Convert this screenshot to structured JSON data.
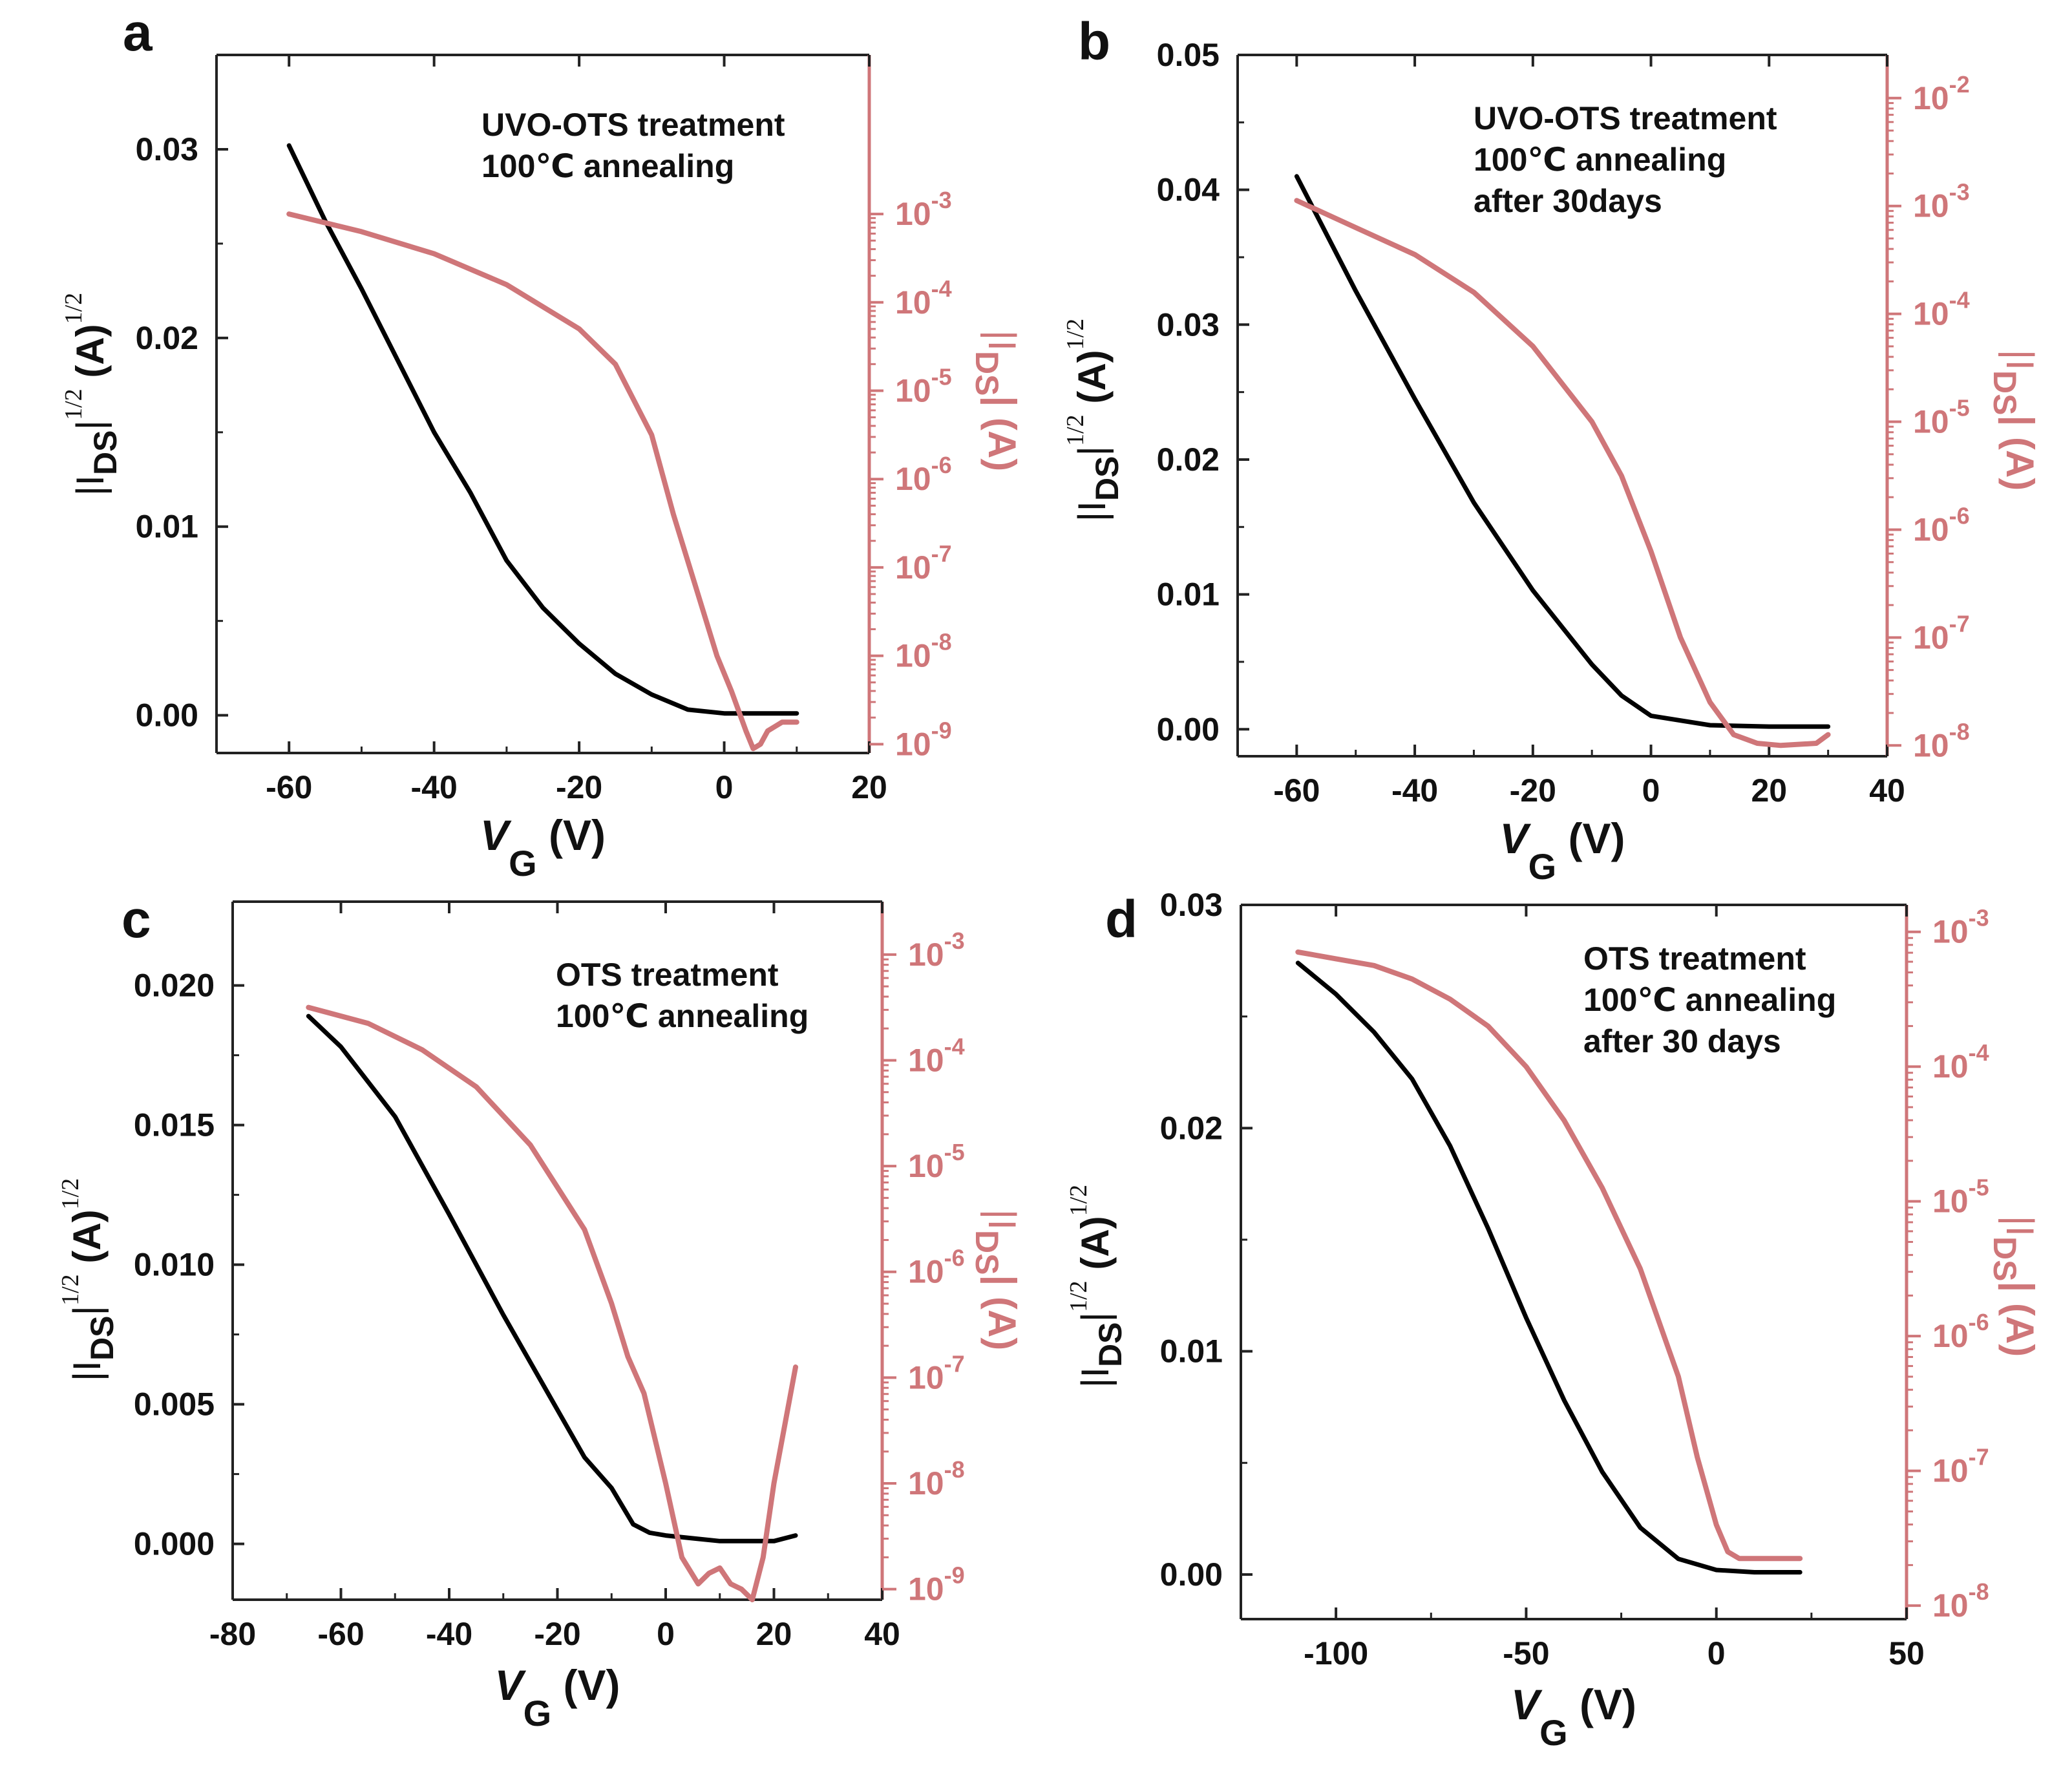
{
  "colors": {
    "black_curve": "#000000",
    "red_curve": "#cf7679",
    "axis": "#222222"
  },
  "chart_data": [
    {
      "type": "line",
      "panel": "a",
      "annotation": [
        "UVO-OTS treatment",
        "100℃ annealing"
      ],
      "xlabel": "V",
      "xlabel_sub": "G",
      "xlabel_unit": "(V)",
      "ylabel_left": "|I",
      "ylabel_left_sub": "DS",
      "ylabel_left_tail": "|",
      "ylabel_left_sup": "1/2",
      "ylabel_left_unit": "(A)",
      "ylabel_left_unit_sup": "1/2",
      "ylabel_right": "|I",
      "ylabel_right_sub": "DS",
      "ylabel_right_tail": "| (A)",
      "xlim": [
        -70,
        20
      ],
      "ylim_left": [
        -0.002,
        0.035
      ],
      "ylog_right": [
        -9.1,
        -1.2
      ],
      "xticks": [
        -60,
        -40,
        -20,
        0,
        20
      ],
      "xticklabels": [
        "-60",
        "-40",
        "-20",
        "0",
        "20"
      ],
      "yticks_left": [
        0,
        0.01,
        0.02,
        0.03
      ],
      "yticklabels_left": [
        "0.00",
        "0.01",
        "0.02",
        "0.03"
      ],
      "yticks_right_exp": [
        -9,
        -8,
        -7,
        -6,
        -5,
        -4,
        -3
      ],
      "yticklabels_right_base": [
        "10",
        "10",
        "10",
        "10",
        "10",
        "10",
        "10"
      ],
      "yticklabels_right_exp": [
        "-9",
        "-8",
        "-7",
        "-6",
        "-5",
        "-4",
        "-3"
      ],
      "series": [
        {
          "name": "|IDS|^1/2",
          "axis": "left",
          "x": [
            -60,
            -55,
            -50,
            -45,
            -40,
            -35,
            -30,
            -25,
            -20,
            -15,
            -10,
            -5,
            0,
            5,
            10
          ],
          "y": [
            0.0302,
            0.0262,
            0.0226,
            0.0188,
            0.015,
            0.0118,
            0.0082,
            0.0057,
            0.0038,
            0.0022,
            0.0011,
            0.0003,
            0.0001,
            0.0001,
            0.0001
          ]
        },
        {
          "name": "|IDS|",
          "axis": "right",
          "x": [
            -60,
            -50,
            -40,
            -30,
            -20,
            -15,
            -10,
            -7,
            -4,
            -1,
            1,
            3,
            4,
            5,
            6,
            7,
            8,
            10
          ],
          "y_exp": [
            -3.0,
            -3.2,
            -3.45,
            -3.8,
            -4.3,
            -4.7,
            -5.5,
            -6.4,
            -7.2,
            -8.0,
            -8.4,
            -8.85,
            -9.05,
            -9.0,
            -8.85,
            -8.8,
            -8.75,
            -8.75
          ]
        }
      ]
    },
    {
      "type": "line",
      "panel": "b",
      "annotation": [
        "UVO-OTS treatment",
        "100℃ annealing",
        "after 30days"
      ],
      "xlabel": "V",
      "xlabel_sub": "G",
      "xlabel_unit": "(V)",
      "ylabel_left": "|I",
      "ylabel_left_sub": "DS",
      "ylabel_left_tail": "|",
      "ylabel_left_sup": "1/2",
      "ylabel_left_unit": "(A)",
      "ylabel_left_unit_sup": "1/2",
      "ylabel_right": "|I",
      "ylabel_right_sub": "DS",
      "ylabel_right_tail": "| (A)",
      "xlim": [
        -70,
        40
      ],
      "ylim_left": [
        -0.002,
        0.05
      ],
      "ylog_right": [
        -8.1,
        -1.6
      ],
      "xticks": [
        -60,
        -40,
        -20,
        0,
        20,
        40
      ],
      "xticklabels": [
        "-60",
        "-40",
        "-20",
        "0",
        "20",
        "40"
      ],
      "yticks_left": [
        0,
        0.01,
        0.02,
        0.03,
        0.04,
        0.05
      ],
      "yticklabels_left": [
        "0.00",
        "0.01",
        "0.02",
        "0.03",
        "0.04",
        "0.05"
      ],
      "yticks_right_exp": [
        -8,
        -7,
        -6,
        -5,
        -4,
        -3,
        -2
      ],
      "yticklabels_right_base": [
        "10",
        "10",
        "10",
        "10",
        "10",
        "10",
        "10"
      ],
      "yticklabels_right_exp": [
        "-8",
        "-7",
        "-6",
        "-5",
        "-4",
        "-3",
        "-2"
      ],
      "series": [
        {
          "name": "|IDS|^1/2",
          "axis": "left",
          "x": [
            -60,
            -50,
            -40,
            -30,
            -20,
            -10,
            -5,
            0,
            10,
            20,
            30
          ],
          "y": [
            0.041,
            0.0325,
            0.0245,
            0.0168,
            0.0103,
            0.0048,
            0.0025,
            0.001,
            0.0003,
            0.0002,
            0.0002
          ]
        },
        {
          "name": "|IDS|",
          "axis": "right",
          "x": [
            -60,
            -50,
            -40,
            -30,
            -20,
            -10,
            -5,
            0,
            5,
            10,
            14,
            18,
            22,
            28,
            30
          ],
          "y_exp": [
            -2.95,
            -3.2,
            -3.45,
            -3.8,
            -4.3,
            -5.0,
            -5.5,
            -6.2,
            -7.0,
            -7.6,
            -7.9,
            -7.98,
            -8.0,
            -7.98,
            -7.9
          ]
        }
      ]
    },
    {
      "type": "line",
      "panel": "c",
      "annotation": [
        "OTS treatment",
        "100℃ annealing"
      ],
      "xlabel": "V",
      "xlabel_sub": "G",
      "xlabel_unit": "(V)",
      "ylabel_left": "|I",
      "ylabel_left_sub": "DS",
      "ylabel_left_tail": "|",
      "ylabel_left_sup": "1/2",
      "ylabel_left_unit": "(A)",
      "ylabel_left_unit_sup": "1/2",
      "ylabel_right": "|I",
      "ylabel_right_sub": "DS",
      "ylabel_right_tail": "| (A)",
      "xlim": [
        -80,
        40
      ],
      "ylim_left": [
        -0.002,
        0.023
      ],
      "ylog_right": [
        -9.1,
        -2.5
      ],
      "xticks": [
        -80,
        -60,
        -40,
        -20,
        0,
        20,
        40
      ],
      "xticklabels": [
        "-80",
        "-60",
        "-40",
        "-20",
        "0",
        "20",
        "40"
      ],
      "yticks_left": [
        0,
        0.005,
        0.01,
        0.015,
        0.02
      ],
      "yticklabels_left": [
        "0.000",
        "0.005",
        "0.010",
        "0.015",
        "0.020"
      ],
      "yticks_right_exp": [
        -9,
        -8,
        -7,
        -6,
        -5,
        -4,
        -3
      ],
      "yticklabels_right_base": [
        "10",
        "10",
        "10",
        "10",
        "10",
        "10",
        "10"
      ],
      "yticklabels_right_exp": [
        "-9",
        "-8",
        "-7",
        "-6",
        "-5",
        "-4",
        "-3"
      ],
      "series": [
        {
          "name": "|IDS|^1/2",
          "axis": "left",
          "x": [
            -66,
            -60,
            -50,
            -40,
            -30,
            -20,
            -15,
            -10,
            -6,
            -3,
            0,
            5,
            10,
            15,
            20,
            24
          ],
          "y": [
            0.0189,
            0.0178,
            0.0153,
            0.0118,
            0.0082,
            0.0048,
            0.0031,
            0.002,
            0.0007,
            0.0004,
            0.0003,
            0.0002,
            0.0001,
            0.0001,
            0.0001,
            0.0003
          ]
        },
        {
          "name": "|IDS|",
          "axis": "right",
          "x": [
            -66,
            -55,
            -45,
            -35,
            -25,
            -15,
            -10,
            -7,
            -4,
            0,
            3,
            6,
            8,
            10,
            12,
            14,
            16,
            18,
            20,
            24
          ],
          "y_exp": [
            -3.5,
            -3.65,
            -3.9,
            -4.25,
            -4.8,
            -5.6,
            -6.3,
            -6.8,
            -7.15,
            -8.0,
            -8.7,
            -8.95,
            -8.85,
            -8.8,
            -8.95,
            -9.0,
            -9.1,
            -8.7,
            -8.0,
            -6.9
          ]
        }
      ]
    },
    {
      "type": "line",
      "panel": "d",
      "annotation": [
        "OTS treatment",
        "100℃ annealing",
        "after 30 days"
      ],
      "xlabel": "V",
      "xlabel_sub": "G",
      "xlabel_unit": "(V)",
      "ylabel_left": "|I",
      "ylabel_left_sub": "DS",
      "ylabel_left_tail": "|",
      "ylabel_left_sup": "1/2",
      "ylabel_left_unit": "(A)",
      "ylabel_left_unit_sup": "1/2",
      "ylabel_right": "|I",
      "ylabel_right_sub": "DS",
      "ylabel_right_tail": "| (A)",
      "xlim": [
        -125,
        50
      ],
      "ylim_left": [
        -0.002,
        0.03
      ],
      "ylog_right": [
        -8.1,
        -2.8
      ],
      "xticks": [
        -100,
        -50,
        0,
        50
      ],
      "xticklabels": [
        "-100",
        "-50",
        "0",
        "50"
      ],
      "yticks_left": [
        0,
        0.01,
        0.02,
        0.03
      ],
      "yticklabels_left": [
        "0.00",
        "0.01",
        "0.02",
        "0.03"
      ],
      "yticks_right_exp": [
        -8,
        -7,
        -6,
        -5,
        -4,
        -3
      ],
      "yticklabels_right_base": [
        "10",
        "10",
        "10",
        "10",
        "10",
        "10"
      ],
      "yticklabels_right_exp": [
        "-8",
        "-7",
        "-6",
        "-5",
        "-4",
        "-3"
      ],
      "series": [
        {
          "name": "|IDS|^1/2",
          "axis": "left",
          "x": [
            -110,
            -100,
            -90,
            -80,
            -70,
            -60,
            -50,
            -40,
            -30,
            -20,
            -10,
            0,
            10,
            22
          ],
          "y": [
            0.0274,
            0.026,
            0.0243,
            0.0222,
            0.0192,
            0.0155,
            0.0115,
            0.0078,
            0.0046,
            0.0021,
            0.0007,
            0.0002,
            0.0001,
            0.0001
          ]
        },
        {
          "name": "|IDS|",
          "axis": "right",
          "x": [
            -110,
            -100,
            -90,
            -80,
            -70,
            -60,
            -50,
            -40,
            -30,
            -20,
            -10,
            -5,
            0,
            3,
            6,
            10,
            22
          ],
          "y_exp": [
            -3.15,
            -3.2,
            -3.25,
            -3.35,
            -3.5,
            -3.7,
            -4.0,
            -4.4,
            -4.9,
            -5.5,
            -6.3,
            -6.9,
            -7.4,
            -7.6,
            -7.65,
            -7.65,
            -7.65
          ]
        }
      ]
    }
  ]
}
